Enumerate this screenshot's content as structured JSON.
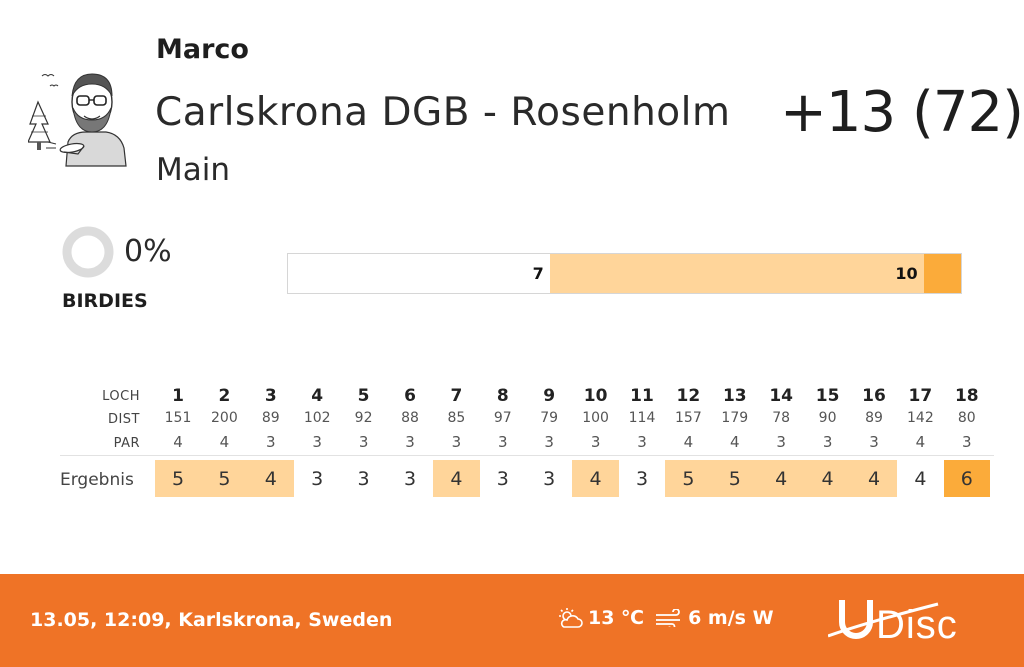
{
  "header": {
    "player_name": "Marco",
    "course_name": "Carlskrona DGB - Rosenholm",
    "layout_name": "Main",
    "score_total": "+13 (72)"
  },
  "birdies": {
    "percent_text": "0%",
    "percent": 0,
    "label": "BIRDIES"
  },
  "distribution": [
    {
      "label": "7",
      "count": 7,
      "color": "#ffffff"
    },
    {
      "label": "10",
      "count": 10,
      "color": "#ffd59a"
    },
    {
      "label": "",
      "count": 1,
      "color": "#fbab3a"
    }
  ],
  "scorecard": {
    "hole_label": "LOCH",
    "dist_label": "DIST",
    "par_label": "PAR",
    "result_label": "Ergebnis",
    "holes": [
      {
        "n": "1",
        "dist": "151",
        "par": "4",
        "score": "5",
        "status": "bogey"
      },
      {
        "n": "2",
        "dist": "200",
        "par": "4",
        "score": "5",
        "status": "bogey"
      },
      {
        "n": "3",
        "dist": "89",
        "par": "3",
        "score": "4",
        "status": "bogey"
      },
      {
        "n": "4",
        "dist": "102",
        "par": "3",
        "score": "3",
        "status": "par"
      },
      {
        "n": "5",
        "dist": "92",
        "par": "3",
        "score": "3",
        "status": "par"
      },
      {
        "n": "6",
        "dist": "88",
        "par": "3",
        "score": "3",
        "status": "par"
      },
      {
        "n": "7",
        "dist": "85",
        "par": "3",
        "score": "4",
        "status": "bogey"
      },
      {
        "n": "8",
        "dist": "97",
        "par": "3",
        "score": "3",
        "status": "par"
      },
      {
        "n": "9",
        "dist": "79",
        "par": "3",
        "score": "3",
        "status": "par"
      },
      {
        "n": "10",
        "dist": "100",
        "par": "3",
        "score": "4",
        "status": "bogey"
      },
      {
        "n": "11",
        "dist": "114",
        "par": "3",
        "score": "3",
        "status": "par"
      },
      {
        "n": "12",
        "dist": "157",
        "par": "4",
        "score": "5",
        "status": "bogey"
      },
      {
        "n": "13",
        "dist": "179",
        "par": "4",
        "score": "5",
        "status": "bogey"
      },
      {
        "n": "14",
        "dist": "78",
        "par": "3",
        "score": "4",
        "status": "bogey"
      },
      {
        "n": "15",
        "dist": "90",
        "par": "3",
        "score": "4",
        "status": "bogey"
      },
      {
        "n": "16",
        "dist": "89",
        "par": "3",
        "score": "4",
        "status": "bogey"
      },
      {
        "n": "17",
        "dist": "142",
        "par": "4",
        "score": "4",
        "status": "par"
      },
      {
        "n": "18",
        "dist": "80",
        "par": "3",
        "score": "6",
        "status": "double-bogey"
      }
    ]
  },
  "colors": {
    "bogey": "#ffd59a",
    "double_bogey": "#fbab3a",
    "par": "#ffffff",
    "footer": "#ef7326"
  },
  "footer": {
    "info": "13.05, 12:09, Karlskrona, Sweden",
    "temperature": "13 ℃",
    "wind": "6 m/s W",
    "weather_icon": "partly-cloudy-icon",
    "wind_icon": "wind-icon",
    "logo_text": "UDisc"
  }
}
